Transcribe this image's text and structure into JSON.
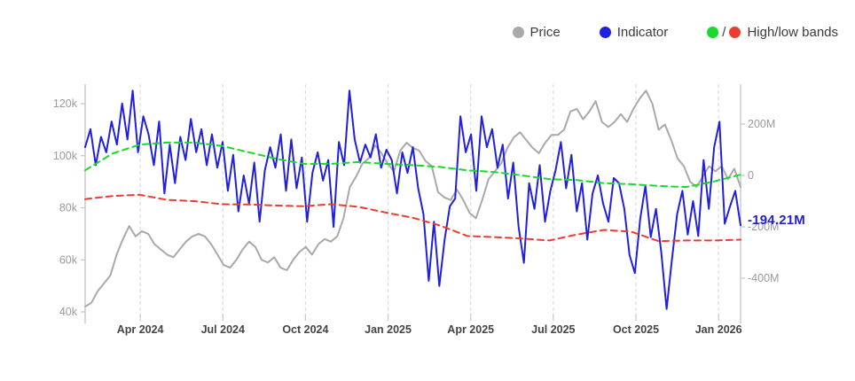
{
  "legend": {
    "price_label": "Price",
    "indicator_label": "Indicator",
    "bands_label": "High/low bands",
    "bands_separator": "/"
  },
  "chart_data": {
    "type": "line",
    "x_axis": {
      "span_months": 23.8,
      "ticks": [
        {
          "label": "Apr 2024",
          "month": 2
        },
        {
          "label": "Jul 2024",
          "month": 5
        },
        {
          "label": "Oct 2024",
          "month": 8
        },
        {
          "label": "Jan 2025",
          "month": 11
        },
        {
          "label": "Apr 2025",
          "month": 14
        },
        {
          "label": "Jul 2025",
          "month": 17
        },
        {
          "label": "Oct 2025",
          "month": 20
        },
        {
          "label": "Jan 2026",
          "month": 23
        }
      ]
    },
    "left_axis": {
      "ticks": [
        {
          "label": "120k",
          "value": 120
        },
        {
          "label": "100k",
          "value": 100
        },
        {
          "label": "80k",
          "value": 80
        },
        {
          "label": "60k",
          "value": 60
        },
        {
          "label": "40k",
          "value": 40
        }
      ]
    },
    "right_axis": {
      "ticks": [
        {
          "label": "200M",
          "value": 200
        },
        {
          "label": "0",
          "value": 0
        },
        {
          "label": "-200M",
          "value": -200
        },
        {
          "label": "-400M",
          "value": -400
        }
      ]
    },
    "grid": {
      "vertical_dashed": true,
      "color": "#dddddd"
    },
    "axis_line_color": "#c4c4c4",
    "axis_text_color": "#9b9b9b",
    "x_axis_text_color": "#444444",
    "series": [
      {
        "name": "Price",
        "axis": "left",
        "color": "#a9a9a9",
        "style": "solid",
        "width": 2,
        "values": [
          42,
          43.5,
          48,
          51,
          54,
          62,
          68,
          73,
          69,
          71,
          70,
          66,
          64,
          62,
          61,
          64,
          67,
          69,
          70,
          69,
          66,
          62,
          58,
          57,
          60,
          64,
          67,
          65,
          60,
          59,
          61,
          57,
          56,
          60,
          63,
          65,
          62,
          66,
          68,
          67,
          69,
          76,
          88,
          92,
          97,
          99,
          104,
          101,
          97,
          94,
          102,
          105,
          103,
          102,
          98,
          96,
          86,
          84,
          83,
          87,
          83,
          78,
          76,
          83,
          91,
          94,
          97,
          103,
          107,
          109,
          106,
          103,
          101,
          105,
          108,
          108,
          110,
          117,
          118,
          114,
          117,
          121,
          113,
          111,
          113,
          116,
          113,
          118,
          122,
          125,
          120,
          110,
          112,
          106,
          99,
          96,
          90,
          88,
          92,
          96,
          94,
          96,
          91,
          95,
          88
        ]
      },
      {
        "name": "Indicator",
        "axis": "right",
        "color": "#2020dd",
        "style": "solid",
        "width": 2,
        "values": [
          110,
          180,
          40,
          150,
          90,
          210,
          120,
          280,
          140,
          330,
          90,
          230,
          160,
          40,
          210,
          -70,
          120,
          -30,
          150,
          60,
          220,
          90,
          180,
          40,
          160,
          30,
          130,
          -60,
          80,
          -140,
          0,
          -110,
          50,
          -180,
          20,
          110,
          30,
          160,
          -60,
          140,
          -50,
          70,
          -180,
          10,
          90,
          -20,
          60,
          -200,
          130,
          40,
          330,
          140,
          50,
          120,
          70,
          160,
          30,
          100,
          60,
          -70,
          90,
          10,
          110,
          -50,
          -150,
          -410,
          -180,
          -430,
          -250,
          -120,
          -90,
          230,
          90,
          160,
          -60,
          230,
          110,
          180,
          30,
          120,
          -90,
          50,
          -200,
          -340,
          -30,
          -130,
          40,
          -180,
          -60,
          20,
          130,
          -50,
          80,
          -140,
          -30,
          -250,
          -70,
          0,
          -110,
          -180,
          -10,
          -30,
          -130,
          -310,
          -380,
          -170,
          -40,
          -240,
          -130,
          -300,
          -520,
          -330,
          -150,
          -60,
          -230,
          -100,
          -236,
          60,
          -130,
          110,
          209,
          -188,
          -120,
          -60,
          -194.21
        ]
      },
      {
        "name": "High band",
        "axis": "right",
        "color": "#17da2b",
        "style": "dashed",
        "width": 2,
        "values": [
          20,
          85,
          120,
          128,
          128,
          115,
          90,
          65,
          45,
          45,
          52,
          45,
          40,
          33,
          20,
          13,
          0,
          -14,
          -18,
          -30,
          -34,
          -41,
          -45,
          -24,
          3
        ]
      },
      {
        "name": "Low band",
        "axis": "right",
        "color": "#ee3b30",
        "style": "dashed",
        "width": 2,
        "values": [
          -92,
          -80,
          -75,
          -95,
          -100,
          -112,
          -113,
          -117,
          -120,
          -112,
          -122,
          -144,
          -165,
          -195,
          -236,
          -240,
          -246,
          -253,
          -230,
          -212,
          -219,
          -256,
          -253,
          -253,
          -250
        ]
      }
    ],
    "current_value": {
      "series": "Indicator",
      "label": "-194.21M",
      "value": -194.21,
      "color": "#2222cc"
    }
  }
}
